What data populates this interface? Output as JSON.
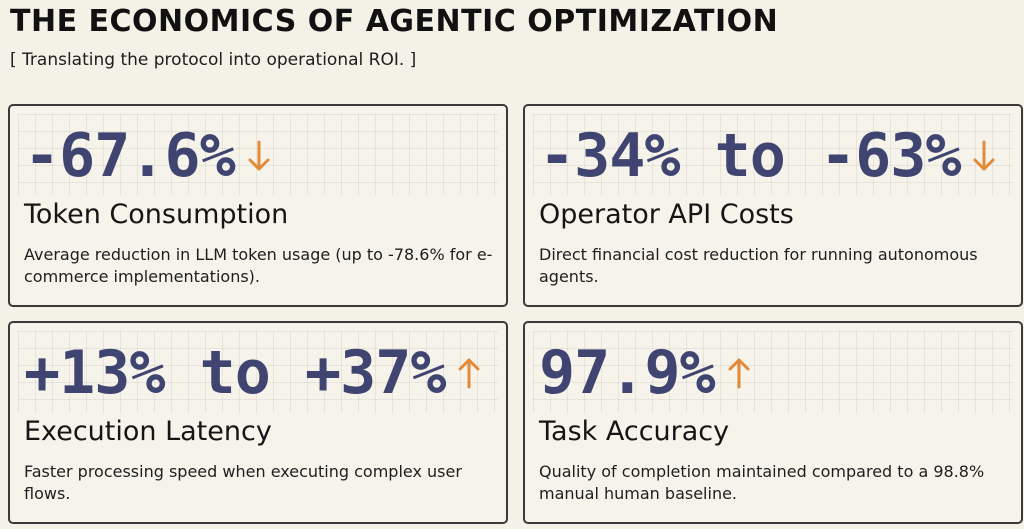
{
  "header": {
    "title": "THE ECONOMICS OF AGENTIC OPTIMIZATION",
    "subtitle": "[ Translating the protocol into operational ROI. ]"
  },
  "colors": {
    "value": "#3f4470",
    "arrow": "#e38a3a",
    "border": "#3a3a3a",
    "background": "#f4f1e7"
  },
  "cards": [
    {
      "value": "-67.6%",
      "trend_icon": "arrow-down-icon",
      "title": "Token Consumption",
      "description": "Average reduction in LLM token usage (up to -78.6% for e-commerce implementations)."
    },
    {
      "value": "-34% to -63%",
      "trend_icon": "arrow-down-icon",
      "title": "Operator API Costs",
      "description": "Direct financial cost reduction for running autonomous agents."
    },
    {
      "value": "+13% to +37%",
      "trend_icon": "arrow-up-icon",
      "title": "Execution Latency",
      "description": "Faster processing speed when executing complex user flows."
    },
    {
      "value": "97.9%",
      "trend_icon": "arrow-up-icon",
      "title": "Task Accuracy",
      "description": "Quality of completion maintained compared to a 98.8% manual human baseline."
    }
  ]
}
